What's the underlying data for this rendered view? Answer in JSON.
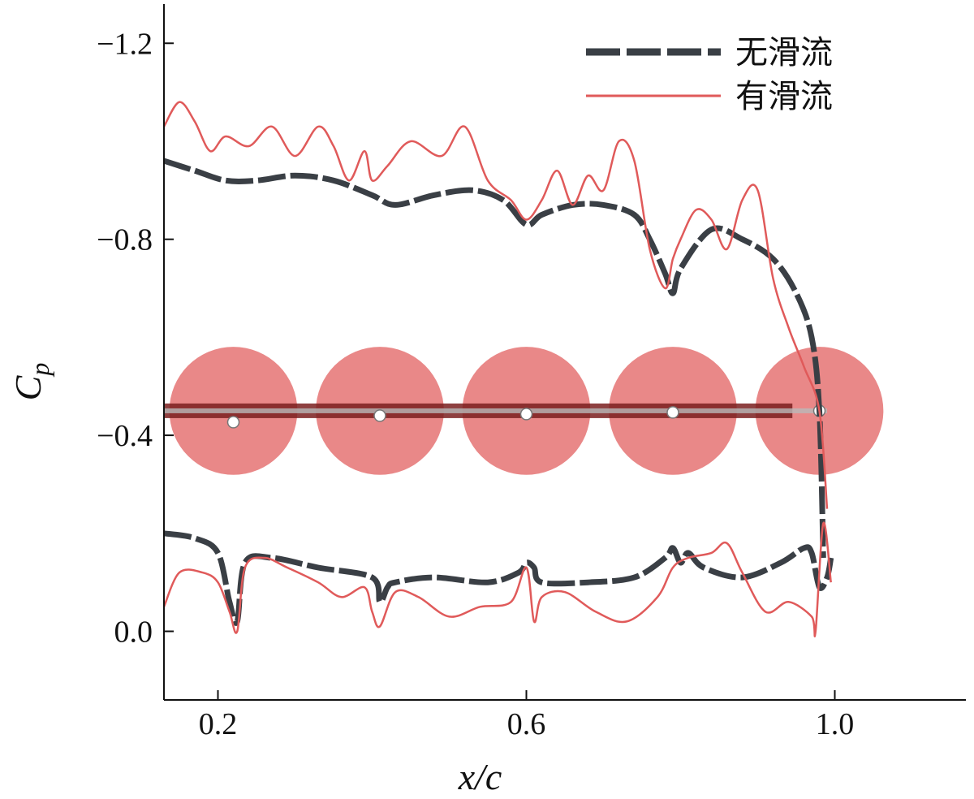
{
  "chart_data": {
    "type": "line",
    "xlabel": "x/c",
    "ylabel": "Cp",
    "xlim": [
      0.13,
      1.17
    ],
    "ylim": [
      0.14,
      -1.28
    ],
    "y_inverted": true,
    "x_ticks": [
      0.2,
      0.6,
      1.0
    ],
    "x_tick_labels": [
      "0.2",
      "0.6",
      "1.0"
    ],
    "y_ticks": [
      -1.2,
      -0.8,
      -0.4,
      0.0
    ],
    "y_tick_labels": [
      "−1.2",
      "−0.8",
      "−0.4",
      "0.0"
    ],
    "grid": false,
    "legend_position": "top-right",
    "colors": {
      "no_slipstream": "#3a3f45",
      "with_slipstream": "#e05a5a",
      "propeller_disc": "#e57373",
      "wing": "#7a1f1f"
    },
    "series": [
      {
        "name": "无滑流",
        "style": "dashed",
        "upper": {
          "x": [
            0.13,
            0.17,
            0.21,
            0.25,
            0.3,
            0.35,
            0.4,
            0.43,
            0.48,
            0.53,
            0.57,
            0.6,
            0.62,
            0.66,
            0.7,
            0.74,
            0.76,
            0.78,
            0.79,
            0.8,
            0.84,
            0.88,
            0.92,
            0.95,
            0.97,
            0.98,
            0.985
          ],
          "y": [
            -0.96,
            -0.94,
            -0.92,
            -0.92,
            -0.93,
            -0.92,
            -0.89,
            -0.87,
            -0.89,
            -0.9,
            -0.88,
            -0.83,
            -0.85,
            -0.87,
            -0.87,
            -0.85,
            -0.8,
            -0.73,
            -0.69,
            -0.74,
            -0.82,
            -0.8,
            -0.76,
            -0.69,
            -0.6,
            -0.45,
            -0.15
          ]
        },
        "lower": {
          "x": [
            0.13,
            0.17,
            0.2,
            0.215,
            0.225,
            0.235,
            0.27,
            0.33,
            0.4,
            0.41,
            0.42,
            0.43,
            0.48,
            0.55,
            0.59,
            0.6,
            0.61,
            0.62,
            0.68,
            0.74,
            0.78,
            0.79,
            0.8,
            0.81,
            0.83,
            0.88,
            0.93,
            0.96,
            0.97,
            0.98,
            0.99,
            0.995
          ],
          "y": [
            -0.2,
            -0.19,
            -0.16,
            -0.06,
            -0.02,
            -0.14,
            -0.15,
            -0.13,
            -0.11,
            -0.06,
            -0.09,
            -0.1,
            -0.11,
            -0.1,
            -0.12,
            -0.14,
            -0.13,
            -0.1,
            -0.1,
            -0.11,
            -0.15,
            -0.17,
            -0.14,
            -0.16,
            -0.13,
            -0.11,
            -0.14,
            -0.17,
            -0.16,
            -0.09,
            -0.11,
            -0.15
          ]
        }
      },
      {
        "name": "有滑流",
        "style": "solid",
        "upper": {
          "x": [
            0.13,
            0.15,
            0.17,
            0.19,
            0.21,
            0.24,
            0.27,
            0.3,
            0.33,
            0.35,
            0.37,
            0.39,
            0.4,
            0.42,
            0.45,
            0.49,
            0.52,
            0.55,
            0.58,
            0.6,
            0.62,
            0.64,
            0.66,
            0.68,
            0.7,
            0.72,
            0.74,
            0.76,
            0.78,
            0.79,
            0.8,
            0.82,
            0.84,
            0.86,
            0.88,
            0.9,
            0.92,
            0.94,
            0.96,
            0.98,
            0.99
          ],
          "y": [
            -1.03,
            -1.08,
            -1.04,
            -0.98,
            -1.01,
            -0.99,
            -1.03,
            -0.97,
            -1.03,
            -0.99,
            -0.92,
            -0.98,
            -0.92,
            -0.95,
            -1.0,
            -0.97,
            -1.03,
            -0.92,
            -0.88,
            -0.84,
            -0.88,
            -0.94,
            -0.87,
            -0.93,
            -0.9,
            -1.0,
            -0.96,
            -0.78,
            -0.7,
            -0.76,
            -0.8,
            -0.86,
            -0.84,
            -0.78,
            -0.88,
            -0.9,
            -0.72,
            -0.62,
            -0.54,
            -0.45,
            -0.25
          ]
        },
        "lower": {
          "x": [
            0.13,
            0.15,
            0.18,
            0.2,
            0.215,
            0.225,
            0.235,
            0.26,
            0.29,
            0.33,
            0.36,
            0.39,
            0.4,
            0.41,
            0.43,
            0.46,
            0.5,
            0.54,
            0.58,
            0.6,
            0.61,
            0.62,
            0.65,
            0.69,
            0.73,
            0.77,
            0.79,
            0.81,
            0.84,
            0.86,
            0.88,
            0.91,
            0.94,
            0.97,
            0.975,
            0.985,
            0.995
          ],
          "y": [
            -0.05,
            -0.12,
            -0.12,
            -0.1,
            -0.04,
            0.0,
            -0.13,
            -0.15,
            -0.13,
            -0.1,
            -0.07,
            -0.09,
            -0.04,
            -0.01,
            -0.08,
            -0.07,
            -0.03,
            -0.05,
            -0.06,
            -0.13,
            -0.02,
            -0.07,
            -0.08,
            -0.04,
            -0.02,
            -0.07,
            -0.13,
            -0.15,
            -0.16,
            -0.18,
            -0.12,
            -0.04,
            -0.06,
            -0.03,
            0.0,
            -0.22,
            -0.1
          ]
        }
      }
    ],
    "propellers": {
      "x": [
        0.22,
        0.41,
        0.6,
        0.79,
        0.98
      ],
      "y": -0.45,
      "radius": 0.083
    },
    "legend": [
      "无滑流",
      "有滑流"
    ]
  }
}
